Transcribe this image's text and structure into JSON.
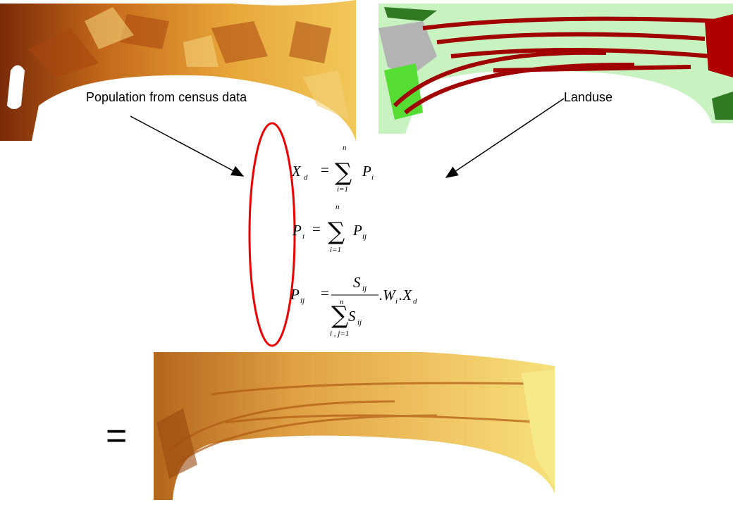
{
  "labels": {
    "population": "Population from census data",
    "landuse": "Landuse",
    "equals": "="
  },
  "formulas": [
    {
      "left": "X",
      "left_sub": "d",
      "eq": "=",
      "sum": "∑",
      "upper": "n",
      "lower": "i=1",
      "term": "P",
      "term_sub": "i"
    },
    {
      "left": "P",
      "left_sub": "i",
      "eq": "=",
      "sum": "∑",
      "upper": "n",
      "lower": "i=1",
      "term": "P",
      "term_sub": "ij"
    },
    {
      "left": "P",
      "left_sub": "ij",
      "eq": "=",
      "numerator": "S",
      "numerator_sub": "ij",
      "sum": "∑",
      "upper": "n",
      "lower": "i , j=1",
      "denominator": "S",
      "denominator_sub": "ij",
      "op1": ".W",
      "op1_sub": "i",
      "op2": ".X",
      "op2_sub": "d"
    }
  ]
}
